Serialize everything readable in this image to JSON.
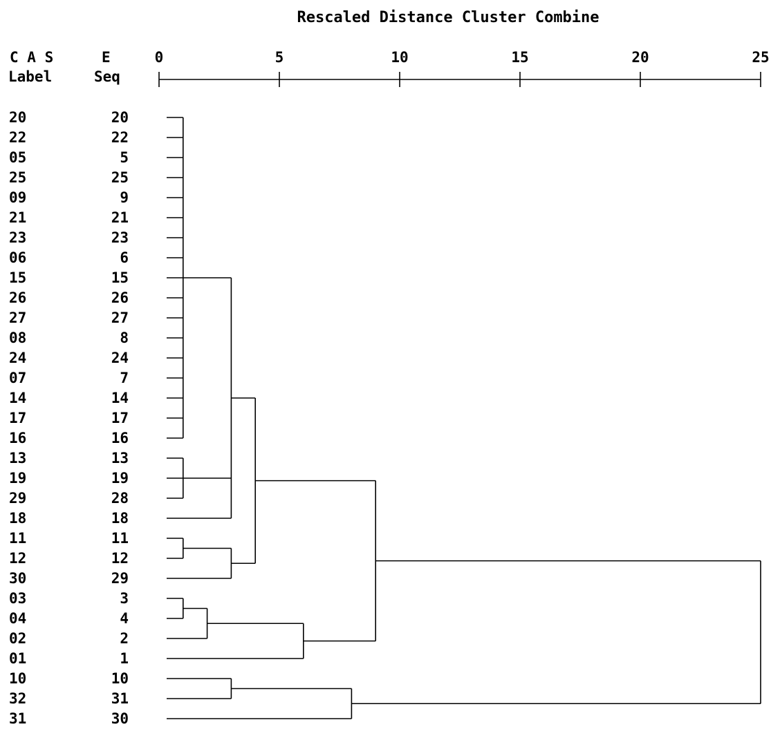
{
  "title": "Rescaled Distance Cluster Combine",
  "header": {
    "case_label": "C A S E",
    "label_col": "Label",
    "seq_col": "Seq"
  },
  "axis": {
    "ticks": [
      "0",
      "5",
      "10",
      "15",
      "20",
      "25"
    ],
    "range": [
      0,
      25
    ]
  },
  "cases": [
    {
      "label": "20",
      "seq": "20"
    },
    {
      "label": "22",
      "seq": "22"
    },
    {
      "label": "05",
      "seq": "5"
    },
    {
      "label": "25",
      "seq": "25"
    },
    {
      "label": "09",
      "seq": "9"
    },
    {
      "label": "21",
      "seq": "21"
    },
    {
      "label": "23",
      "seq": "23"
    },
    {
      "label": "06",
      "seq": "6"
    },
    {
      "label": "15",
      "seq": "15"
    },
    {
      "label": "26",
      "seq": "26"
    },
    {
      "label": "27",
      "seq": "27"
    },
    {
      "label": "08",
      "seq": "8"
    },
    {
      "label": "24",
      "seq": "24"
    },
    {
      "label": "07",
      "seq": "7"
    },
    {
      "label": "14",
      "seq": "14"
    },
    {
      "label": "17",
      "seq": "17"
    },
    {
      "label": "16",
      "seq": "16"
    },
    {
      "label": "13",
      "seq": "13"
    },
    {
      "label": "19",
      "seq": "19"
    },
    {
      "label": "29",
      "seq": "28"
    },
    {
      "label": "18",
      "seq": "18"
    },
    {
      "label": "11",
      "seq": "11"
    },
    {
      "label": "12",
      "seq": "12"
    },
    {
      "label": "30",
      "seq": "29"
    },
    {
      "label": "03",
      "seq": "3"
    },
    {
      "label": "04",
      "seq": "4"
    },
    {
      "label": "02",
      "seq": "2"
    },
    {
      "label": "01",
      "seq": "1"
    },
    {
      "label": "10",
      "seq": "10"
    },
    {
      "label": "32",
      "seq": "31"
    },
    {
      "label": "31",
      "seq": "30"
    }
  ],
  "merges": [
    {
      "children": [
        "r0",
        "r1",
        "r2",
        "r3",
        "r4",
        "r5",
        "r6",
        "r7",
        "r8",
        "r9",
        "r10",
        "r11",
        "r12",
        "r13",
        "r14",
        "r15",
        "r16"
      ],
      "distance": 1.0
    },
    {
      "children": [
        "r17",
        "r18",
        "r19"
      ],
      "distance": 1.0
    },
    {
      "children": [
        "r21",
        "r22"
      ],
      "distance": 1.0
    },
    {
      "children": [
        "r24",
        "r25"
      ],
      "distance": 1.0
    },
    {
      "children": [
        "m3",
        "r26"
      ],
      "distance": 2.0
    },
    {
      "children": [
        "r28",
        "r29"
      ],
      "distance": 3.0
    },
    {
      "children": [
        "m0",
        "m1",
        "r20"
      ],
      "distance": 3.0
    },
    {
      "children": [
        "m2",
        "r23"
      ],
      "distance": 3.0
    },
    {
      "children": [
        "m6",
        "m7"
      ],
      "distance": 4.0
    },
    {
      "children": [
        "m4",
        "r27"
      ],
      "distance": 6.0
    },
    {
      "children": [
        "m5",
        "r30"
      ],
      "distance": 8.0
    },
    {
      "children": [
        "m8",
        "m9"
      ],
      "distance": 9.0
    },
    {
      "children": [
        "m11",
        "m10"
      ],
      "distance": 25.0
    }
  ]
}
